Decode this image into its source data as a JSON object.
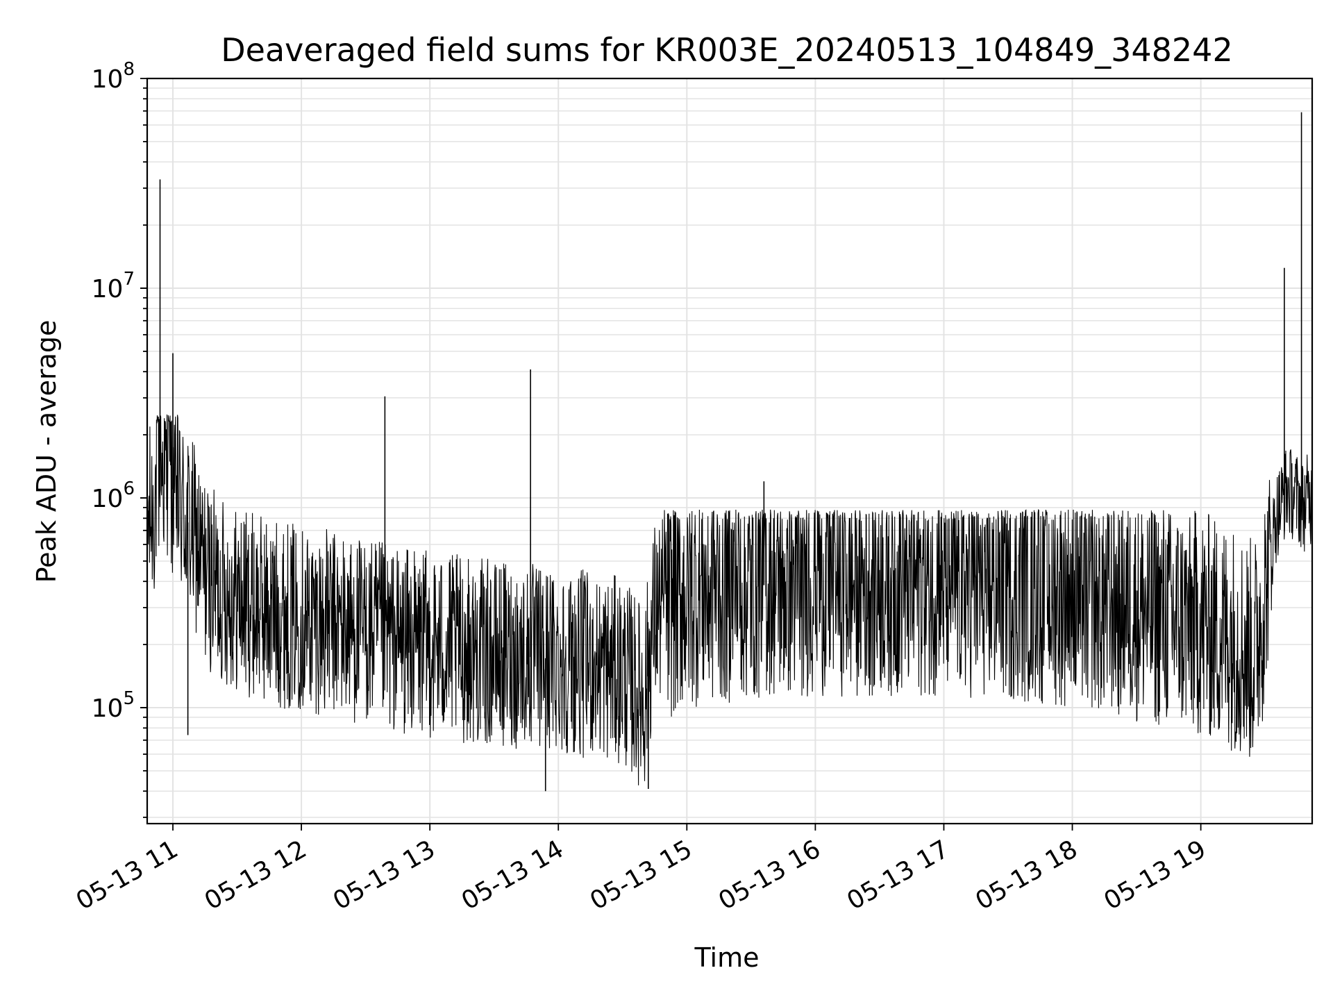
{
  "chart_data": {
    "type": "line",
    "title": "Deaveraged field sums for KR003E_20240513_104849_348242",
    "xlabel": "Time",
    "ylabel": "Peak ADU - average",
    "yscale": "log",
    "ylim": [
      28000,
      100000000
    ],
    "xlim": [
      "2024-05-13 10:48",
      "2024-05-13 19:52"
    ],
    "grid": true,
    "x_ticks": [
      "05-13 11",
      "05-13 12",
      "05-13 13",
      "05-13 14",
      "05-13 15",
      "05-13 16",
      "05-13 17",
      "05-13 18",
      "05-13 19"
    ],
    "y_ticks": [
      {
        "base": "10",
        "exp": "5",
        "value": 100000
      },
      {
        "base": "10",
        "exp": "6",
        "value": 1000000
      },
      {
        "base": "10",
        "exp": "7",
        "value": 10000000
      },
      {
        "base": "10",
        "exp": "8",
        "value": 100000000
      }
    ],
    "series": [
      {
        "color": "#000000",
        "x": [
          "2024-05-13 10:48",
          "2024-05-13 10:51",
          "2024-05-13 10:54",
          "2024-05-13 10:57",
          "2024-05-13 11:00",
          "2024-05-13 11:05",
          "2024-05-13 11:10",
          "2024-05-13 11:15",
          "2024-05-13 11:20",
          "2024-05-13 11:30",
          "2024-05-13 11:40",
          "2024-05-13 11:50",
          "2024-05-13 12:00",
          "2024-05-13 12:15",
          "2024-05-13 12:30",
          "2024-05-13 12:45",
          "2024-05-13 13:00",
          "2024-05-13 13:15",
          "2024-05-13 13:30",
          "2024-05-13 13:45",
          "2024-05-13 14:00",
          "2024-05-13 14:15",
          "2024-05-13 14:30",
          "2024-05-13 14:40",
          "2024-05-13 14:45",
          "2024-05-13 15:00",
          "2024-05-13 15:30",
          "2024-05-13 16:00",
          "2024-05-13 16:30",
          "2024-05-13 17:00",
          "2024-05-13 17:30",
          "2024-05-13 18:00",
          "2024-05-13 18:30",
          "2024-05-13 19:00",
          "2024-05-13 19:15",
          "2024-05-13 19:25",
          "2024-05-13 19:30",
          "2024-05-13 19:35",
          "2024-05-13 19:40",
          "2024-05-13 19:45",
          "2024-05-13 19:48",
          "2024-05-13 19:50",
          "2024-05-13 19:52"
        ],
        "y": [
          750000,
          900000,
          1500000,
          1300000,
          1100000,
          850000,
          650000,
          450000,
          380000,
          330000,
          300000,
          280000,
          270000,
          250000,
          230000,
          210000,
          200000,
          190000,
          180000,
          175000,
          170000,
          160000,
          150000,
          110000,
          280000,
          350000,
          380000,
          400000,
          400000,
          400000,
          380000,
          350000,
          300000,
          250000,
          220000,
          180000,
          350000,
          800000,
          1100000,
          1000000,
          900000,
          1000000,
          950000
        ]
      }
    ],
    "peaks": [
      {
        "x": "2024-05-13 10:54",
        "y": 33000000
      },
      {
        "x": "2024-05-13 11:00",
        "y": 4900000
      },
      {
        "x": "2024-05-13 12:39",
        "y": 3050000
      },
      {
        "x": "2024-05-13 13:47",
        "y": 4100000
      },
      {
        "x": "2024-05-13 15:36",
        "y": 1200000
      },
      {
        "x": "2024-05-13 19:39",
        "y": 12500000
      },
      {
        "x": "2024-05-13 19:47",
        "y": 69000000
      }
    ],
    "troughs": [
      {
        "x": "2024-05-13 11:07",
        "y": 74000
      },
      {
        "x": "2024-05-13 13:54",
        "y": 40000
      },
      {
        "x": "2024-05-13 14:42",
        "y": 41000
      }
    ]
  }
}
